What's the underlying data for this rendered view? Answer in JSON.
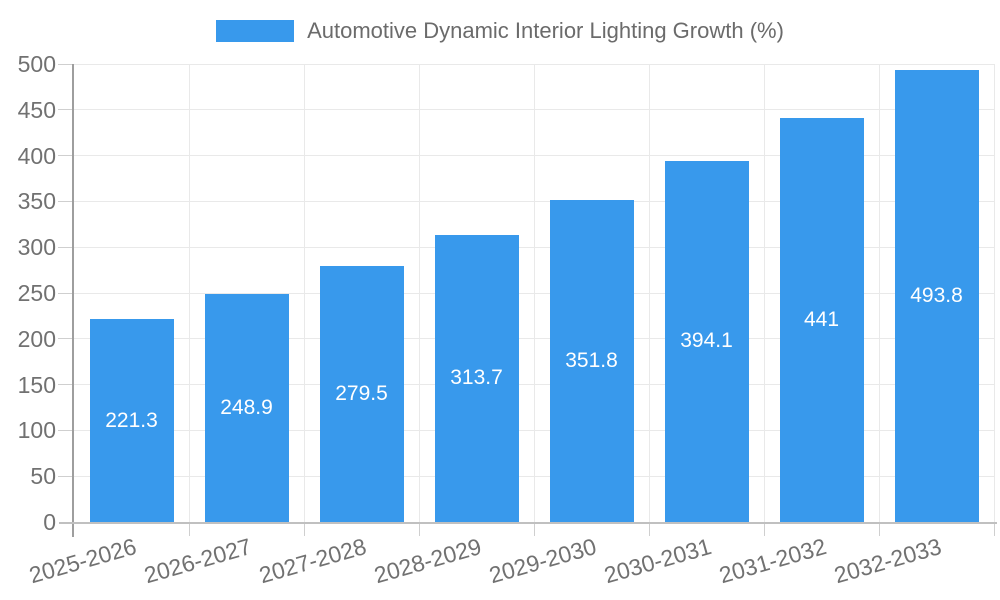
{
  "chart_data": {
    "type": "bar",
    "title": "",
    "series_name": "Automotive Dynamic Interior Lighting Growth (%)",
    "categories": [
      "2025-2026",
      "2026-2027",
      "2027-2028",
      "2028-2029",
      "2029-2030",
      "2030-2031",
      "2031-2032",
      "2032-2033"
    ],
    "values": [
      221.3,
      248.9,
      279.5,
      313.7,
      351.8,
      394.1,
      441,
      493.8
    ],
    "value_labels": [
      "221.3",
      "248.9",
      "279.5",
      "313.7",
      "351.8",
      "394.1",
      "441",
      "493.8"
    ],
    "xlabel": "",
    "ylabel": "",
    "ylim": [
      0,
      500
    ],
    "yticks": [
      0,
      50,
      100,
      150,
      200,
      250,
      300,
      350,
      400,
      450,
      500
    ],
    "grid": true,
    "legend_position": "top",
    "x_label_rotation_deg": -16
  },
  "legend": {
    "label": "Automotive Dynamic Interior Lighting Growth (%)"
  },
  "colors": {
    "bar": "#3899EC",
    "bar_value_text": "#FFFFFF",
    "grid_line": "#E9E9E9",
    "y_axis_line": "#9E9E9E",
    "x_axis_line": "#C0C0C0",
    "tick": "#CFCFCF",
    "axis_label_text": "#717171",
    "legend_text": "#6B6B6B",
    "background": "#FFFFFF"
  }
}
